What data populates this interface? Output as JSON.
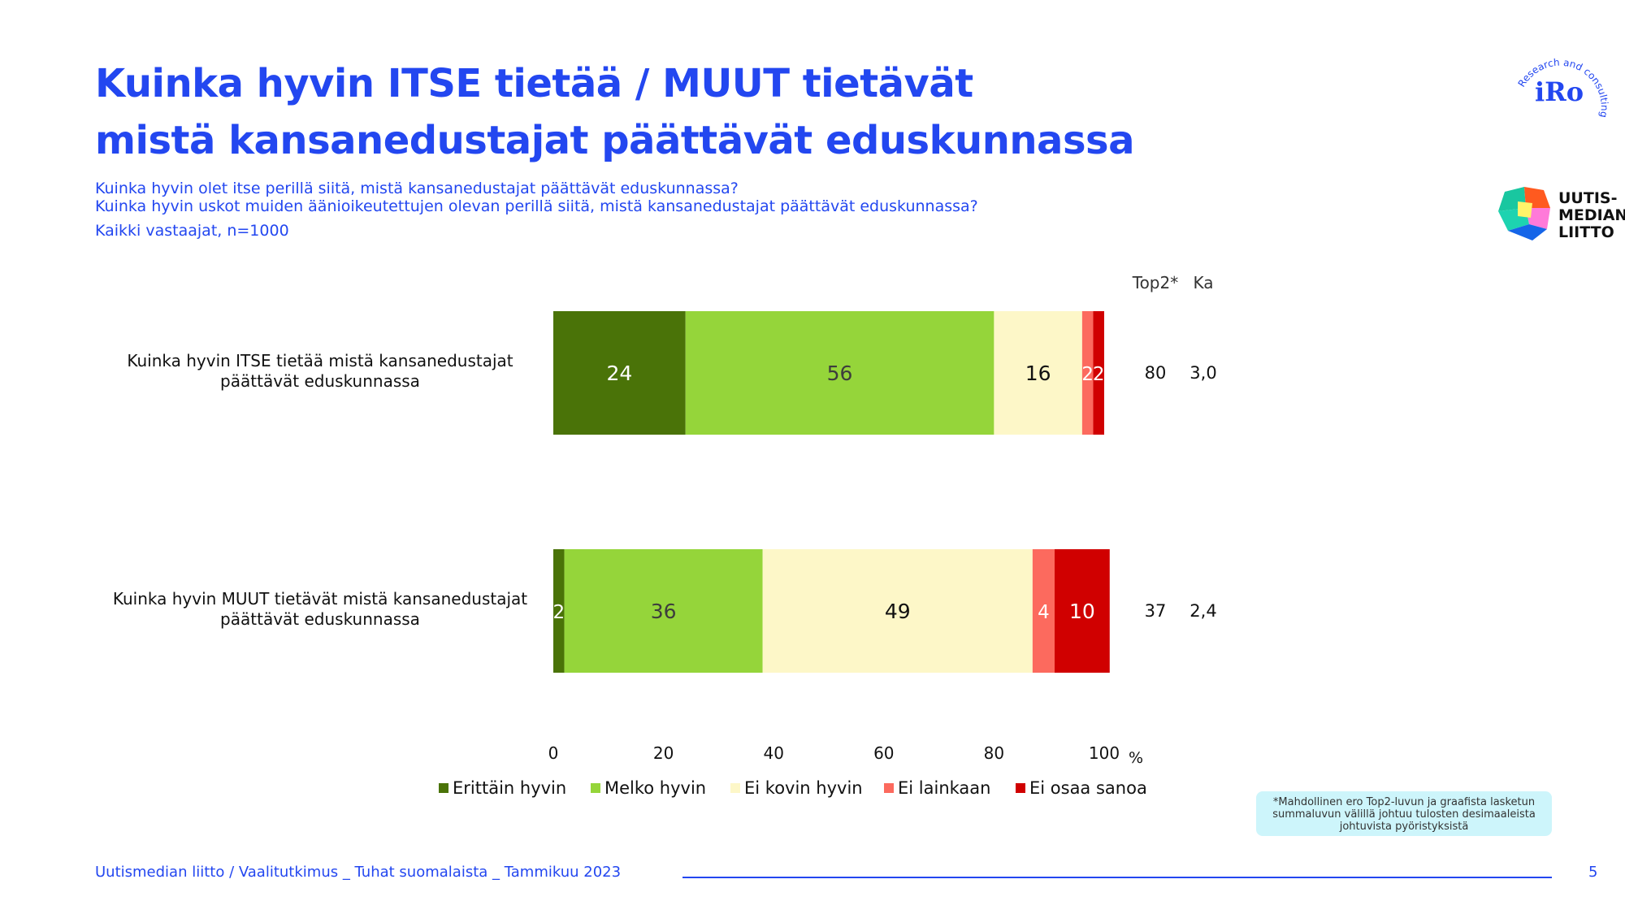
{
  "header": {
    "title_lines": [
      "Kuinka hyvin ITSE tietää / MUUT tietävät",
      "mistä kansanedustajat päättävät eduskunnassa"
    ],
    "questions": [
      "Kuinka hyvin olet itse perillä siitä, mistä kansanedustajat päättävät eduskunnassa?",
      "Kuinka hyvin uskot muiden äänioikeutettujen olevan perillä siitä, mistä kansanedustajat päättävät eduskunnassa?"
    ],
    "base": "Kaikki vastaajat, n=1000"
  },
  "logos": {
    "iro_name": "iRo",
    "iro_tagline": "Research and consulting",
    "uml_lines": [
      "UUTIS-",
      "MEDIAN",
      "LIITTO"
    ]
  },
  "chart_data": {
    "type": "bar",
    "orientation": "horizontal",
    "stacked": true,
    "categories": [
      "Kuinka hyvin ITSE tietää mistä kansanedustajat päättävät eduskunnassa",
      "Kuinka hyvin MUUT tietävät mistä kansanedustajat päättävät eduskunnassa"
    ],
    "series": [
      {
        "name": "Erittäin hyvin",
        "color": "#4a7308",
        "label_color": "#ffffff",
        "values": [
          24,
          2
        ]
      },
      {
        "name": "Melko hyvin",
        "color": "#95d53a",
        "label_color": "#3d3d3d",
        "values": [
          56,
          36
        ]
      },
      {
        "name": "Ei kovin hyvin",
        "color": "#fdf7c8",
        "label_color": "#111111",
        "values": [
          16,
          49
        ]
      },
      {
        "name": "Ei lainkaan",
        "color": "#fc6a5e",
        "label_color": "#ffffff",
        "values": [
          2,
          4
        ]
      },
      {
        "name": "Ei osaa sanoa",
        "color": "#d00000",
        "label_color": "#ffffff",
        "values": [
          2,
          10
        ]
      }
    ],
    "xlim": [
      0,
      100
    ],
    "xticks": [
      0,
      20,
      40,
      60,
      80,
      100
    ],
    "xunit": "%",
    "extra_columns": [
      {
        "header": "Top2*",
        "values": [
          "80",
          "37"
        ]
      },
      {
        "header": "Ka",
        "values": [
          "3,0",
          "2,4"
        ]
      }
    ],
    "legend_position": "bottom"
  },
  "footnote": "*Mahdollinen ero Top2-luvun ja graafista lasketun summaluvun välillä johtuu tulosten desimaaleista johtuvista pyöristyksistä",
  "footer": {
    "source": "Uutismedian liitto / Vaalitutkimus _ Tuhat suomalaista _ Tammikuu 2023",
    "page": "5"
  },
  "colors": {
    "accent": "#2347f0"
  }
}
